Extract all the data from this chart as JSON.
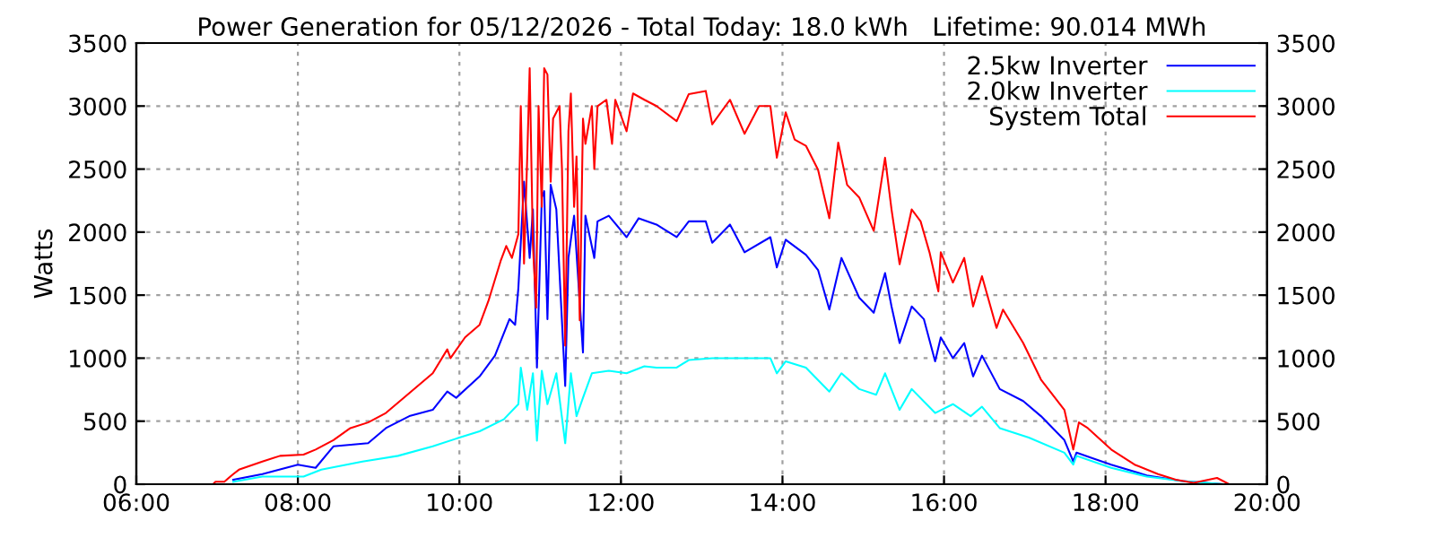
{
  "chart_data": {
    "type": "line",
    "title": "Power Generation for 05/12/2026 - Total Today: 18.0 kWh   Lifetime: 90.014 MWh",
    "ylabel": "Watts",
    "xlim": [
      6,
      20
    ],
    "ylim": [
      0,
      3500
    ],
    "y2lim": [
      0,
      3500
    ],
    "xticks": [
      {
        "value": 6,
        "label": "06:00"
      },
      {
        "value": 8,
        "label": "08:00"
      },
      {
        "value": 10,
        "label": "10:00"
      },
      {
        "value": 12,
        "label": "12:00"
      },
      {
        "value": 14,
        "label": "14:00"
      },
      {
        "value": 16,
        "label": "16:00"
      },
      {
        "value": 18,
        "label": "18:00"
      },
      {
        "value": 20,
        "label": "20:00"
      }
    ],
    "yticks": [
      0,
      500,
      1000,
      1500,
      2000,
      2500,
      3000,
      3500
    ],
    "y2ticks": [
      0,
      500,
      1000,
      1500,
      2000,
      2500,
      3000,
      3500
    ],
    "grid": true,
    "legend": "top right",
    "marker": "none",
    "line_style": "solid",
    "series": [
      {
        "name": "2.5kw Inverter",
        "color": "#0000ff",
        "x": [
          7.2,
          7.56,
          8.0,
          8.22,
          8.44,
          8.87,
          9.09,
          9.38,
          9.67,
          9.85,
          9.96,
          10.25,
          10.44,
          10.62,
          10.69,
          10.73,
          10.8,
          10.87,
          10.91,
          10.96,
          11.02,
          11.05,
          11.09,
          11.13,
          11.2,
          11.31,
          11.35,
          11.42,
          11.53,
          11.56,
          11.67,
          11.71,
          11.85,
          12.07,
          12.22,
          12.44,
          12.69,
          12.84,
          13.05,
          13.13,
          13.35,
          13.53,
          13.85,
          13.93,
          14.04,
          14.29,
          14.44,
          14.58,
          14.73,
          14.95,
          15.13,
          15.27,
          15.35,
          15.45,
          15.6,
          15.75,
          15.89,
          15.96,
          16.11,
          16.25,
          16.36,
          16.47,
          16.69,
          16.98,
          17.2,
          17.49,
          17.6,
          17.64,
          18.07,
          18.51,
          18.95,
          19.45
        ],
        "values": [
          35,
          80,
          155,
          130,
          300,
          325,
          445,
          540,
          590,
          735,
          685,
          855,
          1020,
          1310,
          1265,
          1555,
          2400,
          1795,
          2180,
          925,
          2275,
          2325,
          1310,
          2375,
          2180,
          780,
          1795,
          2130,
          1045,
          2130,
          1795,
          2085,
          2130,
          1960,
          2110,
          2060,
          1960,
          2085,
          2085,
          1915,
          2060,
          1840,
          1960,
          1720,
          1940,
          1820,
          1700,
          1385,
          1795,
          1480,
          1360,
          1675,
          1410,
          1120,
          1410,
          1310,
          975,
          1165,
          1000,
          1120,
          855,
          1020,
          755,
          660,
          540,
          350,
          180,
          250,
          155,
          70,
          25,
          0
        ]
      },
      {
        "name": "2.0kw Inverter",
        "color": "#00ffff",
        "x": [
          7.2,
          7.56,
          8.07,
          8.29,
          8.8,
          9.24,
          9.67,
          10.0,
          10.25,
          10.55,
          10.73,
          10.76,
          10.84,
          10.91,
          10.96,
          11.02,
          11.09,
          11.2,
          11.31,
          11.38,
          11.45,
          11.53,
          11.64,
          11.85,
          12.07,
          12.29,
          12.44,
          12.69,
          12.84,
          13.13,
          13.42,
          13.85,
          13.93,
          14.04,
          14.29,
          14.58,
          14.73,
          14.95,
          15.16,
          15.27,
          15.45,
          15.6,
          15.89,
          16.11,
          16.33,
          16.47,
          16.69,
          17.05,
          17.49,
          17.6,
          17.64,
          18.07,
          18.51,
          18.95,
          19.45
        ],
        "values": [
          20,
          60,
          60,
          115,
          180,
          225,
          300,
          370,
          420,
          515,
          635,
          925,
          590,
          880,
          345,
          900,
          635,
          880,
          325,
          880,
          540,
          685,
          880,
          900,
          880,
          935,
          925,
          925,
          985,
          1000,
          1000,
          1000,
          880,
          975,
          925,
          735,
          880,
          755,
          710,
          880,
          590,
          755,
          565,
          635,
          540,
          615,
          445,
          370,
          250,
          155,
          225,
          130,
          60,
          25,
          0
        ]
      },
      {
        "name": "System Total",
        "color": "#ff0000",
        "x": [
          6.95,
          6.98,
          7.09,
          7.2,
          7.27,
          7.56,
          7.78,
          8.07,
          8.22,
          8.44,
          8.65,
          8.87,
          9.09,
          9.31,
          9.67,
          9.85,
          9.89,
          10.07,
          10.25,
          10.36,
          10.51,
          10.58,
          10.65,
          10.73,
          10.76,
          10.8,
          10.84,
          10.87,
          10.91,
          10.95,
          10.98,
          11.02,
          11.05,
          11.09,
          11.13,
          11.16,
          11.24,
          11.27,
          11.31,
          11.35,
          11.38,
          11.42,
          11.45,
          11.49,
          11.53,
          11.56,
          11.64,
          11.67,
          11.71,
          11.82,
          11.89,
          11.93,
          12.07,
          12.15,
          12.29,
          12.44,
          12.69,
          12.84,
          13.05,
          13.13,
          13.35,
          13.53,
          13.71,
          13.85,
          13.93,
          14.04,
          14.15,
          14.29,
          14.44,
          14.58,
          14.69,
          14.8,
          14.95,
          15.13,
          15.27,
          15.35,
          15.45,
          15.6,
          15.71,
          15.82,
          15.93,
          15.96,
          16.11,
          16.25,
          16.36,
          16.47,
          16.65,
          16.73,
          16.98,
          17.2,
          17.49,
          17.6,
          17.67,
          17.78,
          18.07,
          18.36,
          18.65,
          18.87,
          19.09,
          19.38,
          19.53
        ],
        "values": [
          0,
          20,
          20,
          80,
          115,
          180,
          225,
          235,
          275,
          350,
          445,
          490,
          565,
          685,
          880,
          1070,
          1000,
          1165,
          1265,
          1455,
          1770,
          1890,
          1795,
          1985,
          3000,
          1750,
          2600,
          3300,
          1900,
          1400,
          3000,
          2200,
          3300,
          3250,
          2400,
          2900,
          3000,
          2500,
          1100,
          2800,
          3100,
          2200,
          2600,
          1300,
          2900,
          2700,
          3000,
          2500,
          3000,
          3050,
          2700,
          3050,
          2800,
          3100,
          3050,
          3000,
          2880,
          3095,
          3120,
          2855,
          3050,
          2780,
          3000,
          3000,
          2590,
          2950,
          2735,
          2685,
          2495,
          2110,
          2710,
          2375,
          2275,
          2010,
          2590,
          2180,
          1745,
          2180,
          2085,
          1840,
          1530,
          1840,
          1600,
          1795,
          1410,
          1650,
          1240,
          1385,
          1120,
          830,
          590,
          275,
          490,
          445,
          275,
          155,
          80,
          35,
          10,
          50,
          0
        ]
      }
    ]
  }
}
